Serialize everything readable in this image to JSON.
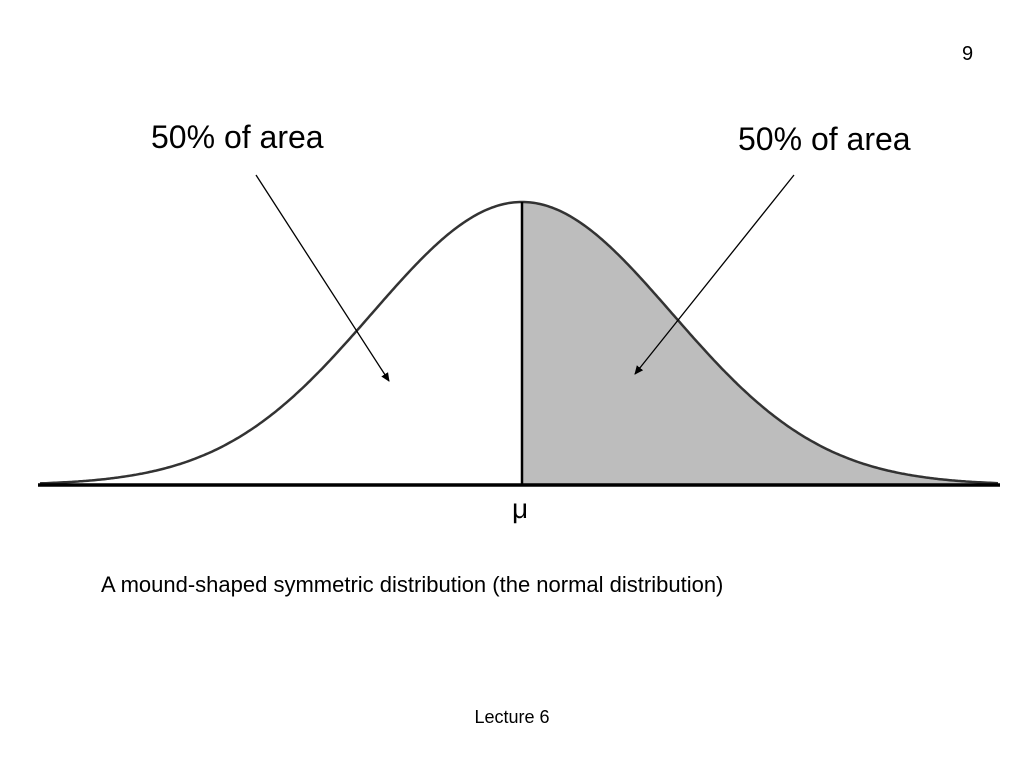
{
  "slide_number": "9",
  "labels": {
    "left_area": "50% of area",
    "right_area": "50% of area",
    "mean_symbol": "μ"
  },
  "caption": "A mound-shaped symmetric distribution (the normal distribution)",
  "footer": "Lecture 6",
  "colors": {
    "shaded_region": "#bdbdbd",
    "curve": "#333333",
    "axis": "#000000"
  }
}
